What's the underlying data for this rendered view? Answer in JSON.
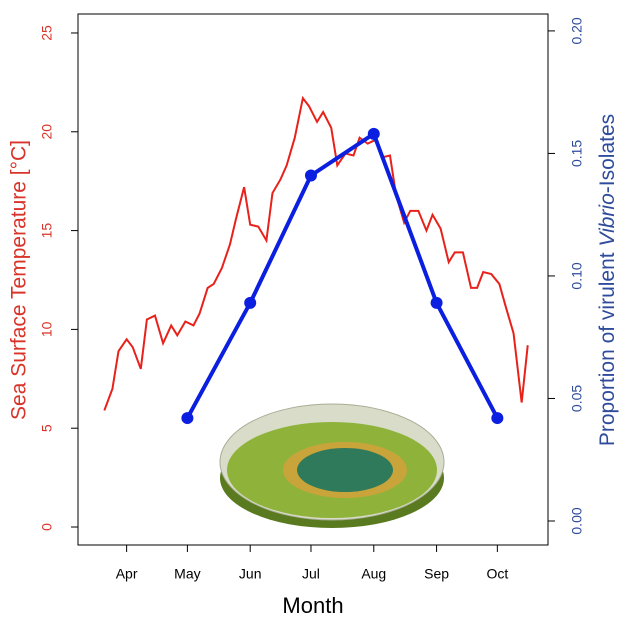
{
  "chart_data": {
    "type": "line",
    "xlabel": "Month",
    "ylabel": "Sea Surface Temperature [°C]",
    "y2label": [
      "Proportion of  virulent ",
      "Vibrio",
      "-Isolates"
    ],
    "xlim": [
      67,
      299
    ],
    "xticks": [
      {
        "value": 91,
        "label": "Apr"
      },
      {
        "value": 121,
        "label": "May"
      },
      {
        "value": 152,
        "label": "Jun"
      },
      {
        "value": 182,
        "label": "Jul"
      },
      {
        "value": 213,
        "label": "Aug"
      },
      {
        "value": 244,
        "label": "Sep"
      },
      {
        "value": 274,
        "label": "Oct"
      }
    ],
    "ylim": [
      -0.91,
      25.96
    ],
    "yticks": [
      0,
      5,
      10,
      15,
      20,
      25
    ],
    "y2lim": [
      -0.0098,
      0.2069
    ],
    "y2ticks": [
      {
        "value": 0,
        "label": "0.00"
      },
      {
        "value": 0.05,
        "label": "0.05"
      },
      {
        "value": 0.1,
        "label": "0.10"
      },
      {
        "value": 0.15,
        "label": "0.15"
      },
      {
        "value": 0.2,
        "label": "0.20"
      }
    ],
    "series": [
      {
        "color": "#e8211a",
        "axis": "y",
        "x": [
          80,
          84,
          87,
          91,
          94,
          98,
          101,
          105,
          109,
          113,
          116,
          120,
          124,
          127,
          131,
          134,
          138,
          142,
          145,
          149,
          152,
          156,
          160,
          163,
          167,
          170,
          174,
          178,
          181,
          185,
          188,
          192,
          195,
          199,
          203,
          206,
          210,
          214,
          217,
          221,
          224,
          228,
          231,
          235,
          239,
          242,
          246,
          250,
          253,
          257,
          261,
          264,
          267,
          271,
          275,
          278,
          282,
          286,
          289
        ],
        "values": [
          5.9,
          7.0,
          8.9,
          9.5,
          9.1,
          8.0,
          10.5,
          10.7,
          9.3,
          10.2,
          9.7,
          10.4,
          10.2,
          10.8,
          12.1,
          12.3,
          13.1,
          14.3,
          15.6,
          17.2,
          15.3,
          15.2,
          14.5,
          16.9,
          17.6,
          18.3,
          19.7,
          21.7,
          21.3,
          20.5,
          21.0,
          20.2,
          18.3,
          18.9,
          18.8,
          19.7,
          19.4,
          19.6,
          18.7,
          18.8,
          16.8,
          15.4,
          16.0,
          16.0,
          15.0,
          15.8,
          15.1,
          13.4,
          13.9,
          13.9,
          12.1,
          12.1,
          12.9,
          12.8,
          12.3,
          11.2,
          9.8,
          6.3,
          9.2
        ]
      },
      {
        "color": "#0b1fe0",
        "axis": "y2",
        "markers": true,
        "x": [
          121,
          152,
          182,
          213,
          244,
          274
        ],
        "values": [
          0.042,
          0.089,
          0.141,
          0.158,
          0.089,
          0.042
        ]
      }
    ]
  }
}
